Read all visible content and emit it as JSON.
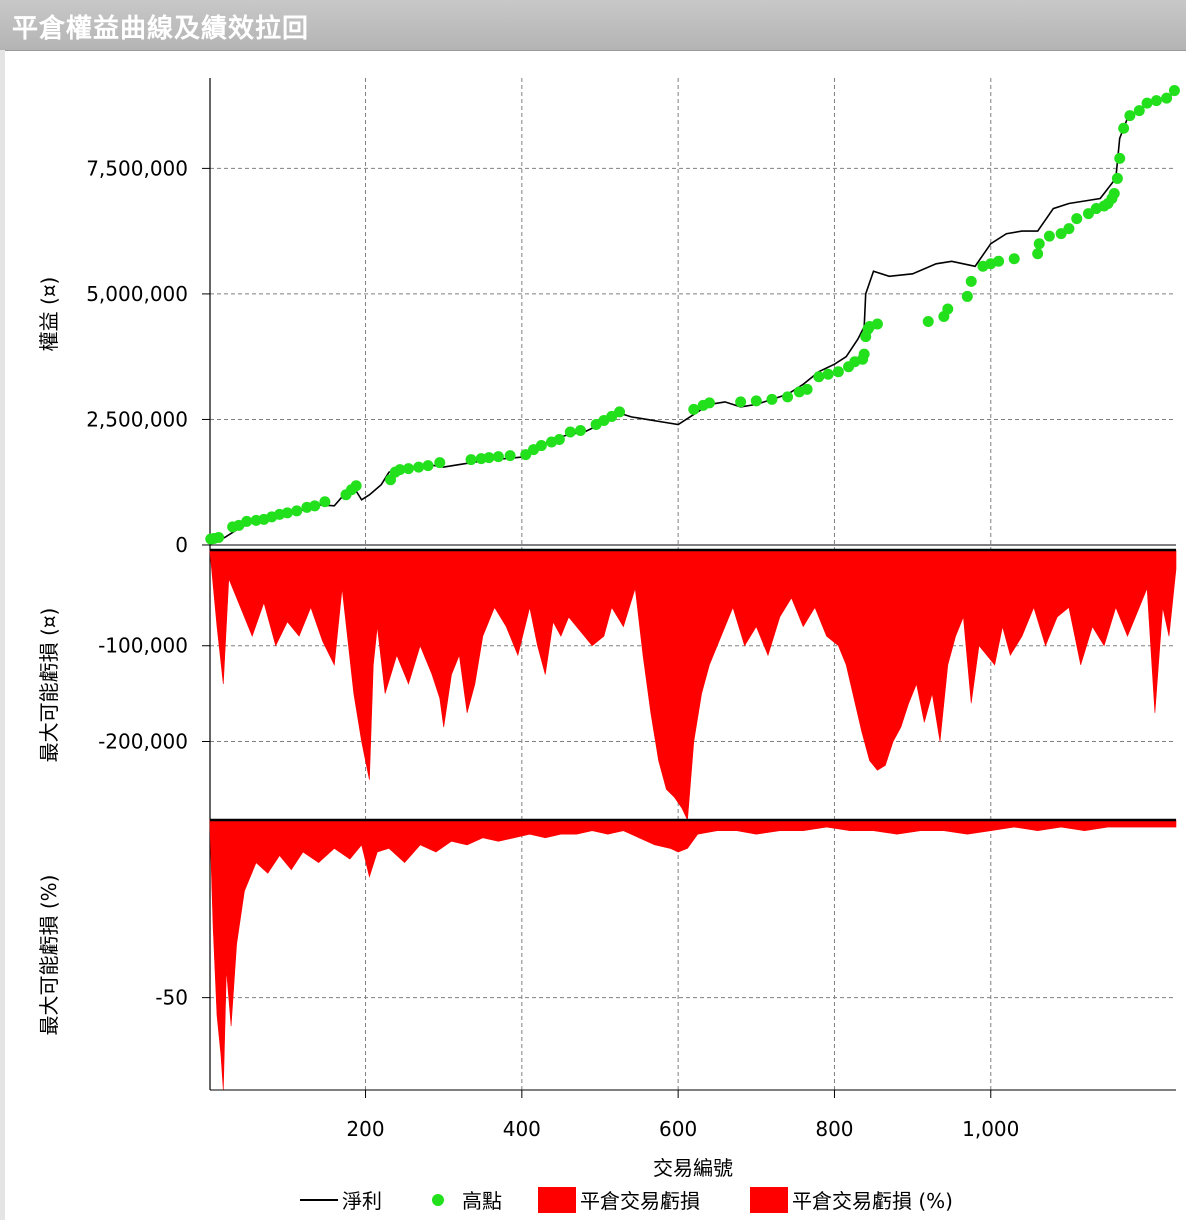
{
  "window": {
    "title": "平倉權益曲線及績效拉回"
  },
  "colors": {
    "line": "#000000",
    "highs": "#22e01c",
    "drawdown": "#ff0000",
    "grid": "#808080",
    "axis": "#000000"
  },
  "chart_data": [
    {
      "type": "line",
      "ylabel": "權益 (¤)",
      "xlim": [
        1,
        1237
      ],
      "ylim": [
        -100000,
        9300000
      ],
      "yticks": [
        "0",
        "2,500,000",
        "5,000,000",
        "7,500,000"
      ],
      "ytick_values": [
        0,
        2500000,
        5000000,
        7500000
      ],
      "grid": true,
      "series": [
        {
          "name": "淨利",
          "style": "line",
          "x": [
            1,
            10,
            20,
            40,
            60,
            80,
            100,
            120,
            140,
            160,
            175,
            185,
            195,
            205,
            220,
            230,
            240,
            260,
            280,
            300,
            320,
            340,
            360,
            380,
            400,
            420,
            440,
            460,
            480,
            500,
            520,
            540,
            560,
            580,
            600,
            620,
            640,
            660,
            680,
            700,
            720,
            740,
            760,
            780,
            800,
            815,
            830,
            838,
            840,
            850,
            870,
            900,
            930,
            950,
            980,
            1000,
            1020,
            1040,
            1060,
            1080,
            1100,
            1120,
            1140,
            1155,
            1160,
            1165,
            1175,
            1185,
            1200,
            1220,
            1237
          ],
          "y": [
            100000,
            80000,
            150000,
            350000,
            480000,
            550000,
            620000,
            700000,
            800000,
            780000,
            1050000,
            1150000,
            900000,
            1000000,
            1200000,
            1450000,
            1500000,
            1550000,
            1600000,
            1550000,
            1600000,
            1650000,
            1700000,
            1720000,
            1750000,
            1950000,
            2100000,
            2200000,
            2250000,
            2400000,
            2650000,
            2550000,
            2500000,
            2450000,
            2400000,
            2600000,
            2800000,
            2850000,
            2750000,
            2800000,
            2900000,
            3000000,
            3200000,
            3450000,
            3600000,
            3750000,
            4100000,
            4350000,
            5000000,
            5450000,
            5350000,
            5400000,
            5600000,
            5650000,
            5550000,
            6000000,
            6200000,
            6250000,
            6250000,
            6700000,
            6800000,
            6850000,
            6900000,
            7200000,
            7300000,
            8100000,
            8500000,
            8600000,
            8800000,
            8900000,
            9000000
          ]
        },
        {
          "name": "高點",
          "style": "scatter",
          "x": [
            2,
            6,
            12,
            30,
            38,
            48,
            60,
            70,
            80,
            90,
            100,
            112,
            125,
            135,
            148,
            175,
            182,
            188,
            232,
            238,
            244,
            255,
            268,
            280,
            295,
            335,
            348,
            358,
            370,
            385,
            405,
            415,
            425,
            438,
            448,
            462,
            475,
            495,
            505,
            515,
            525,
            620,
            632,
            640,
            680,
            700,
            720,
            740,
            755,
            765,
            780,
            792,
            805,
            818,
            826,
            836,
            838,
            840,
            843,
            845,
            855,
            920,
            940,
            945,
            970,
            975,
            990,
            1000,
            1010,
            1030,
            1060,
            1062,
            1075,
            1090,
            1100,
            1110,
            1125,
            1135,
            1145,
            1150,
            1155,
            1158,
            1162,
            1165,
            1170,
            1178,
            1190,
            1200,
            1212,
            1225,
            1235
          ],
          "y": [
            120000,
            130000,
            150000,
            360000,
            390000,
            470000,
            490000,
            510000,
            560000,
            610000,
            640000,
            680000,
            750000,
            780000,
            860000,
            1000000,
            1100000,
            1180000,
            1300000,
            1450000,
            1500000,
            1520000,
            1550000,
            1580000,
            1640000,
            1700000,
            1720000,
            1740000,
            1760000,
            1780000,
            1800000,
            1900000,
            1980000,
            2050000,
            2100000,
            2250000,
            2280000,
            2400000,
            2480000,
            2560000,
            2650000,
            2700000,
            2780000,
            2830000,
            2850000,
            2870000,
            2900000,
            2950000,
            3050000,
            3100000,
            3350000,
            3400000,
            3450000,
            3550000,
            3650000,
            3700000,
            3800000,
            4150000,
            4300000,
            4350000,
            4400000,
            4450000,
            4550000,
            4700000,
            4950000,
            5250000,
            5550000,
            5600000,
            5650000,
            5700000,
            5800000,
            6000000,
            6150000,
            6200000,
            6300000,
            6500000,
            6600000,
            6700000,
            6750000,
            6800000,
            6900000,
            7000000,
            7300000,
            7700000,
            8300000,
            8550000,
            8650000,
            8800000,
            8850000,
            8900000,
            9050000
          ]
        }
      ]
    },
    {
      "type": "area",
      "name": "平倉交易虧損",
      "ylabel": "最大可能虧損 (¤)",
      "xlim": [
        1,
        1237
      ],
      "ylim": [
        -282000,
        0
      ],
      "yticks": [
        "-100,000",
        "-200,000"
      ],
      "ytick_values": [
        -100000,
        -200000
      ],
      "grid": true,
      "x": [
        1,
        10,
        18,
        25,
        40,
        55,
        70,
        85,
        100,
        115,
        130,
        145,
        160,
        170,
        185,
        195,
        205,
        210,
        215,
        225,
        240,
        255,
        270,
        285,
        295,
        300,
        310,
        320,
        330,
        340,
        350,
        365,
        380,
        395,
        410,
        420,
        430,
        440,
        450,
        460,
        475,
        490,
        505,
        515,
        530,
        545,
        555,
        565,
        575,
        585,
        595,
        605,
        612,
        620,
        630,
        640,
        655,
        670,
        685,
        700,
        715,
        730,
        745,
        760,
        775,
        790,
        805,
        815,
        825,
        835,
        845,
        855,
        865,
        875,
        885,
        895,
        905,
        915,
        925,
        935,
        945,
        955,
        965,
        975,
        985,
        995,
        1005,
        1015,
        1025,
        1040,
        1055,
        1070,
        1085,
        1100,
        1115,
        1130,
        1145,
        1160,
        1175,
        1190,
        1200,
        1210,
        1220,
        1228,
        1237
      ],
      "values": [
        -2000,
        -80000,
        -140000,
        -30000,
        -60000,
        -90000,
        -55000,
        -100000,
        -75000,
        -90000,
        -60000,
        -95000,
        -120000,
        -40000,
        -150000,
        -200000,
        -240000,
        -120000,
        -80000,
        -150000,
        -110000,
        -140000,
        -100000,
        -130000,
        -155000,
        -185000,
        -130000,
        -110000,
        -170000,
        -140000,
        -90000,
        -60000,
        -80000,
        -110000,
        -60000,
        -100000,
        -130000,
        -75000,
        -90000,
        -70000,
        -85000,
        -100000,
        -90000,
        -60000,
        -80000,
        -40000,
        -110000,
        -170000,
        -220000,
        -250000,
        -258000,
        -270000,
        -282000,
        -200000,
        -150000,
        -120000,
        -90000,
        -60000,
        -100000,
        -80000,
        -110000,
        -70000,
        -50000,
        -80000,
        -60000,
        -90000,
        -100000,
        -120000,
        -155000,
        -190000,
        -220000,
        -230000,
        -225000,
        -200000,
        -185000,
        -160000,
        -140000,
        -180000,
        -150000,
        -200000,
        -120000,
        -90000,
        -70000,
        -160000,
        -100000,
        -110000,
        -120000,
        -80000,
        -110000,
        -90000,
        -60000,
        -100000,
        -70000,
        -60000,
        -120000,
        -80000,
        -100000,
        -60000,
        -90000,
        -60000,
        -40000,
        -170000,
        -60000,
        -90000,
        -20000
      ]
    },
    {
      "type": "area",
      "name": "平倉交易虧損 (%)",
      "ylabel": "最大可能虧損 (%)",
      "xlim": [
        1,
        1237
      ],
      "ylim": [
        -76,
        0
      ],
      "yticks": [
        "-50"
      ],
      "ytick_values": [
        -50
      ],
      "grid": true,
      "x": [
        1,
        5,
        10,
        15,
        18,
        22,
        28,
        35,
        45,
        60,
        75,
        90,
        105,
        120,
        140,
        160,
        180,
        195,
        205,
        215,
        230,
        250,
        270,
        290,
        310,
        330,
        350,
        370,
        390,
        410,
        430,
        450,
        470,
        490,
        510,
        530,
        550,
        570,
        590,
        600,
        612,
        625,
        650,
        675,
        700,
        730,
        760,
        790,
        820,
        850,
        880,
        910,
        940,
        970,
        1000,
        1030,
        1060,
        1090,
        1120,
        1150,
        1180,
        1210,
        1237
      ],
      "values": [
        -2,
        -30,
        -55,
        -66,
        -76,
        -42,
        -58,
        -35,
        -20,
        -12,
        -15,
        -10,
        -14,
        -9,
        -12,
        -8,
        -11,
        -7,
        -16,
        -9,
        -8,
        -12,
        -7,
        -9,
        -6,
        -7,
        -5,
        -6,
        -5,
        -4,
        -5,
        -4,
        -4,
        -3,
        -4,
        -3,
        -5,
        -7,
        -8,
        -9,
        -8,
        -4,
        -3,
        -3,
        -4,
        -3,
        -3,
        -2,
        -3,
        -3,
        -4,
        -3,
        -3,
        -4,
        -3,
        -2,
        -3,
        -2,
        -3,
        -2,
        -2,
        -2,
        -2
      ]
    }
  ],
  "x_axis": {
    "label": "交易編號",
    "ticks": [
      "200",
      "400",
      "600",
      "800",
      "1,000"
    ],
    "tick_values": [
      200,
      400,
      600,
      800,
      1000
    ]
  },
  "legend": {
    "placement": "bottom",
    "items": [
      {
        "label": "淨利",
        "kind": "line"
      },
      {
        "label": "高點",
        "kind": "dot"
      },
      {
        "label": "平倉交易虧損",
        "kind": "box"
      },
      {
        "label": "平倉交易虧損 (%)",
        "kind": "box"
      }
    ]
  }
}
